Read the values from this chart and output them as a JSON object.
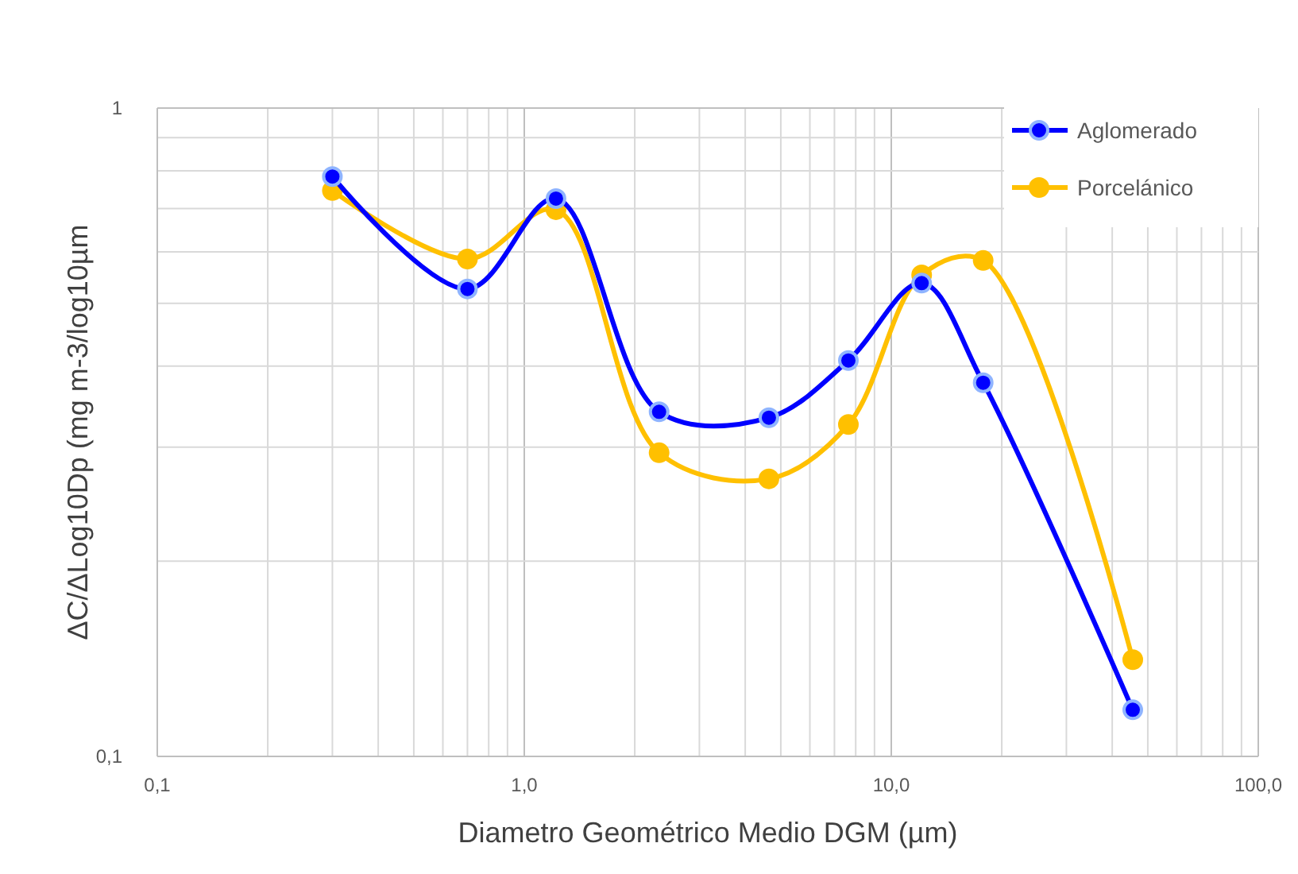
{
  "chart_data": {
    "type": "line",
    "xlabel": "Diametro Geométrico Medio DGM (µm)",
    "ylabel": "ΔC/ΔLog10Dp (mg m-3/log10µm",
    "x": [
      0.3,
      0.7,
      1.22,
      2.33,
      4.64,
      7.64,
      12.1,
      17.8,
      45.5
    ],
    "series": [
      {
        "name": "Aglomerado",
        "color": "#0000ff",
        "values": [
          0.784,
          0.526,
          0.725,
          0.34,
          0.333,
          0.408,
          0.537,
          0.377,
          0.118
        ]
      },
      {
        "name": "Porcelánico",
        "color": "#ffc000",
        "values": [
          0.746,
          0.585,
          0.697,
          0.294,
          0.268,
          0.325,
          0.553,
          0.582,
          0.141
        ]
      }
    ],
    "log": "xy",
    "xlim": [
      0.1,
      100
    ],
    "ylim": [
      0.1,
      1
    ],
    "xticks": [
      {
        "value": 0.1,
        "label": "0,1"
      },
      {
        "value": 0.2,
        "label": null
      },
      {
        "value": 0.3,
        "label": null
      },
      {
        "value": 0.4,
        "label": null
      },
      {
        "value": 0.5,
        "label": null
      },
      {
        "value": 0.6,
        "label": null
      },
      {
        "value": 0.7,
        "label": null
      },
      {
        "value": 0.8,
        "label": null
      },
      {
        "value": 0.9,
        "label": null
      },
      {
        "value": 1,
        "label": "1,0"
      },
      {
        "value": 2,
        "label": null
      },
      {
        "value": 3,
        "label": null
      },
      {
        "value": 4,
        "label": null
      },
      {
        "value": 5,
        "label": null
      },
      {
        "value": 6,
        "label": null
      },
      {
        "value": 7,
        "label": null
      },
      {
        "value": 8,
        "label": null
      },
      {
        "value": 9,
        "label": null
      },
      {
        "value": 10,
        "label": "10,0"
      },
      {
        "value": 20,
        "label": null
      },
      {
        "value": 30,
        "label": null
      },
      {
        "value": 40,
        "label": null
      },
      {
        "value": 50,
        "label": null
      },
      {
        "value": 60,
        "label": null
      },
      {
        "value": 70,
        "label": null
      },
      {
        "value": 80,
        "label": null
      },
      {
        "value": 90,
        "label": null
      },
      {
        "value": 100,
        "label": "100,0"
      }
    ],
    "yticks": [
      {
        "value": 0.1,
        "label": "0,1"
      },
      {
        "value": 0.2,
        "label": null
      },
      {
        "value": 0.3,
        "label": null
      },
      {
        "value": 0.4,
        "label": null
      },
      {
        "value": 0.5,
        "label": null
      },
      {
        "value": 0.6,
        "label": null
      },
      {
        "value": 0.7,
        "label": null
      },
      {
        "value": 0.8,
        "label": null
      },
      {
        "value": 0.9,
        "label": null
      },
      {
        "value": 1,
        "label": "1"
      }
    ],
    "grid": true,
    "legend": "top right",
    "marker": "circle",
    "line_style": "solid"
  }
}
